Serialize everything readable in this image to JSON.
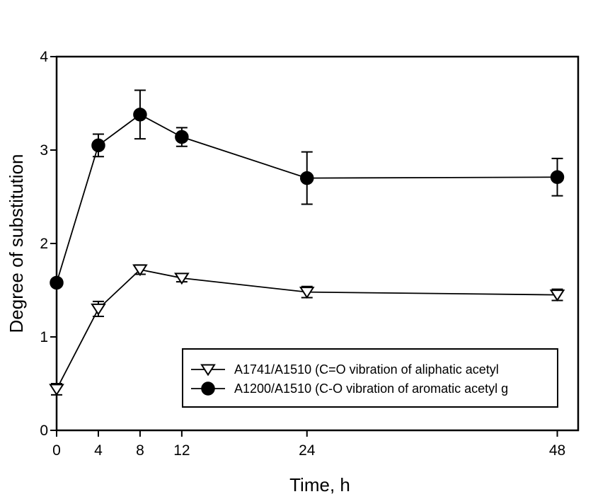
{
  "figure": {
    "background": "#ffffff",
    "foreground": "#000000"
  },
  "chart_data": {
    "type": "line",
    "title": "",
    "xlabel": "Time, h",
    "ylabel": "Degree of substitution",
    "xlim": [
      0,
      50
    ],
    "ylim": [
      0,
      4
    ],
    "xticks": [
      0,
      4,
      8,
      12,
      24,
      48
    ],
    "yticks": [
      0,
      1,
      2,
      3,
      4
    ],
    "grid": false,
    "error_bars": true,
    "legend": {
      "position": "inside-bottom-right",
      "border": true,
      "entries": [
        "A1741/A1510 (C=O vibration of aliphatic acetyl",
        "A1200/A1510 (C-O vibration of aromatic acetyl g"
      ]
    },
    "series": [
      {
        "name": "A1741/A1510 (C=O vibration of aliphatic acetyl",
        "marker": "open-inverted-triangle",
        "color": "#000000",
        "x": [
          0,
          4,
          8,
          12,
          24,
          48
        ],
        "y": [
          0.44,
          1.3,
          1.72,
          1.63,
          1.48,
          1.45
        ],
        "yerr": [
          0.06,
          0.08,
          0.05,
          0.04,
          0.06,
          0.06
        ]
      },
      {
        "name": "A1200/A1510 (C-O vibration of aromatic acetyl g",
        "marker": "filled-circle",
        "color": "#000000",
        "x": [
          0,
          4,
          8,
          12,
          24,
          48
        ],
        "y": [
          1.58,
          3.05,
          3.38,
          3.14,
          2.7,
          2.71
        ],
        "yerr": [
          0,
          0.12,
          0.26,
          0.1,
          0.28,
          0.2
        ]
      }
    ]
  }
}
